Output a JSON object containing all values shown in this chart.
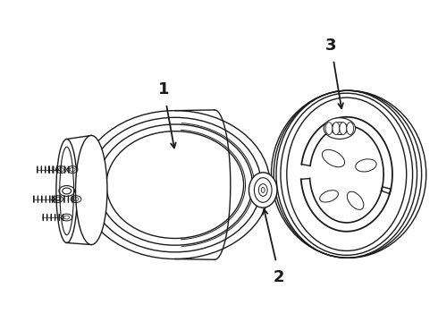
{
  "background_color": "#ffffff",
  "line_color": "#1a1a1a",
  "label_1": "1",
  "label_2": "2",
  "label_3": "3",
  "figsize": [
    4.9,
    3.6
  ],
  "dpi": 100
}
